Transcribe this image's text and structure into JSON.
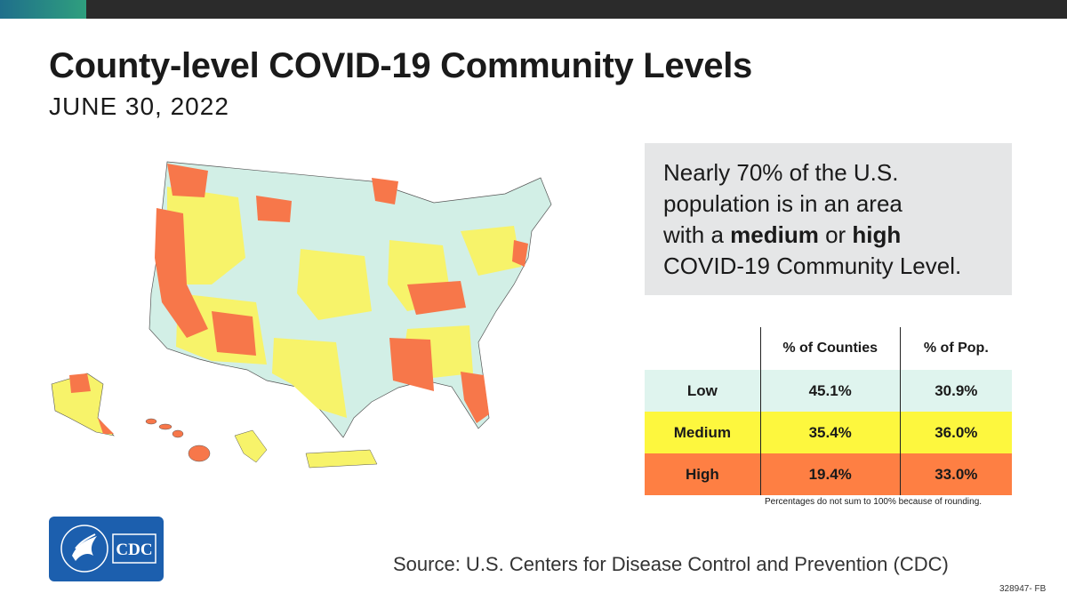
{
  "header": {
    "title": "County-level COVID-19 Community Levels",
    "date": "JUNE 30, 2022"
  },
  "callout": {
    "line1": "Nearly 70% of the U.S.",
    "line2": "population is in an area",
    "line3_pre": "with a ",
    "line3_bold1": "medium",
    "line3_mid": " or ",
    "line3_bold2": "high",
    "line4": "COVID-19 Community Level."
  },
  "table": {
    "headers": [
      "",
      "% of Counties",
      "% of Pop."
    ],
    "rows": [
      {
        "level": "Low",
        "counties": "45.1%",
        "pop": "30.9%",
        "color": "#dff4ee"
      },
      {
        "level": "Medium",
        "counties": "35.4%",
        "pop": "36.0%",
        "color": "#fdf73e"
      },
      {
        "level": "High",
        "counties": "19.4%",
        "pop": "33.0%",
        "color": "#fe7f43"
      }
    ]
  },
  "footnote": "Percentages do not sum to 100% because of rounding.",
  "source": "Source: U.S. Centers for Disease Control and Prevention (CDC)",
  "code": "328947- FB",
  "logo": {
    "icon": "hhs-eagle-icon",
    "text": "CDC"
  },
  "colors": {
    "low": "#cdeee3",
    "medium": "#f7f36a",
    "high": "#f7774a",
    "logo_blue": "#1c5fae"
  }
}
